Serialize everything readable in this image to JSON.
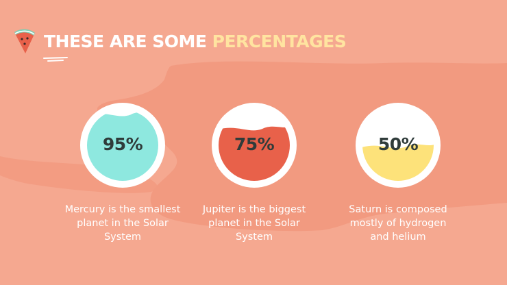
{
  "slide": {
    "title_main": "THESE ARE SOME",
    "title_accent": "PERCENTAGES"
  },
  "metrics": [
    {
      "value": "95%",
      "fraction": 0.95,
      "fill_color": "#8ee8df",
      "caption": "Mercury is the smallest planet in the Solar System"
    },
    {
      "value": "75%",
      "fraction": 0.75,
      "fill_color": "#e8614a",
      "caption": "Jupiter is the biggest planet in the Solar System"
    },
    {
      "value": "50%",
      "fraction": 0.5,
      "fill_color": "#fde27a",
      "caption": "Saturn is composed mostly of hydrogen and helium"
    }
  ],
  "colors": {
    "background": "#f5a890",
    "blob": "#f29a80",
    "accent_title": "#ffe4a0",
    "text": "#ffffff",
    "percent_text": "#2f3b3a"
  }
}
